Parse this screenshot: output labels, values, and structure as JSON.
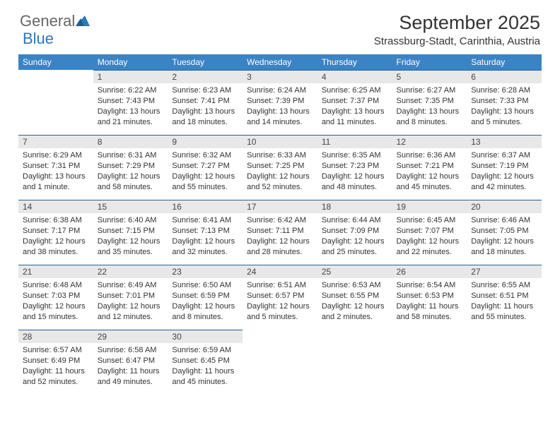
{
  "logo": {
    "text1": "General",
    "text2": "Blue"
  },
  "title": "September 2025",
  "location": "Strassburg-Stadt, Carinthia, Austria",
  "colors": {
    "header_bg": "#3a83c5",
    "header_text": "#ffffff",
    "daynum_bg": "#e8e8e8",
    "daynum_border": "#2e5f8f",
    "text": "#333333",
    "logo_gray": "#666666",
    "logo_blue": "#2e77b8",
    "background": "#ffffff"
  },
  "day_headers": [
    "Sunday",
    "Monday",
    "Tuesday",
    "Wednesday",
    "Thursday",
    "Friday",
    "Saturday"
  ],
  "weeks": [
    [
      {
        "num": "",
        "sunrise": "",
        "sunset": "",
        "daylight": ""
      },
      {
        "num": "1",
        "sunrise": "Sunrise: 6:22 AM",
        "sunset": "Sunset: 7:43 PM",
        "daylight": "Daylight: 13 hours and 21 minutes."
      },
      {
        "num": "2",
        "sunrise": "Sunrise: 6:23 AM",
        "sunset": "Sunset: 7:41 PM",
        "daylight": "Daylight: 13 hours and 18 minutes."
      },
      {
        "num": "3",
        "sunrise": "Sunrise: 6:24 AM",
        "sunset": "Sunset: 7:39 PM",
        "daylight": "Daylight: 13 hours and 14 minutes."
      },
      {
        "num": "4",
        "sunrise": "Sunrise: 6:25 AM",
        "sunset": "Sunset: 7:37 PM",
        "daylight": "Daylight: 13 hours and 11 minutes."
      },
      {
        "num": "5",
        "sunrise": "Sunrise: 6:27 AM",
        "sunset": "Sunset: 7:35 PM",
        "daylight": "Daylight: 13 hours and 8 minutes."
      },
      {
        "num": "6",
        "sunrise": "Sunrise: 6:28 AM",
        "sunset": "Sunset: 7:33 PM",
        "daylight": "Daylight: 13 hours and 5 minutes."
      }
    ],
    [
      {
        "num": "7",
        "sunrise": "Sunrise: 6:29 AM",
        "sunset": "Sunset: 7:31 PM",
        "daylight": "Daylight: 13 hours and 1 minute."
      },
      {
        "num": "8",
        "sunrise": "Sunrise: 6:31 AM",
        "sunset": "Sunset: 7:29 PM",
        "daylight": "Daylight: 12 hours and 58 minutes."
      },
      {
        "num": "9",
        "sunrise": "Sunrise: 6:32 AM",
        "sunset": "Sunset: 7:27 PM",
        "daylight": "Daylight: 12 hours and 55 minutes."
      },
      {
        "num": "10",
        "sunrise": "Sunrise: 6:33 AM",
        "sunset": "Sunset: 7:25 PM",
        "daylight": "Daylight: 12 hours and 52 minutes."
      },
      {
        "num": "11",
        "sunrise": "Sunrise: 6:35 AM",
        "sunset": "Sunset: 7:23 PM",
        "daylight": "Daylight: 12 hours and 48 minutes."
      },
      {
        "num": "12",
        "sunrise": "Sunrise: 6:36 AM",
        "sunset": "Sunset: 7:21 PM",
        "daylight": "Daylight: 12 hours and 45 minutes."
      },
      {
        "num": "13",
        "sunrise": "Sunrise: 6:37 AM",
        "sunset": "Sunset: 7:19 PM",
        "daylight": "Daylight: 12 hours and 42 minutes."
      }
    ],
    [
      {
        "num": "14",
        "sunrise": "Sunrise: 6:38 AM",
        "sunset": "Sunset: 7:17 PM",
        "daylight": "Daylight: 12 hours and 38 minutes."
      },
      {
        "num": "15",
        "sunrise": "Sunrise: 6:40 AM",
        "sunset": "Sunset: 7:15 PM",
        "daylight": "Daylight: 12 hours and 35 minutes."
      },
      {
        "num": "16",
        "sunrise": "Sunrise: 6:41 AM",
        "sunset": "Sunset: 7:13 PM",
        "daylight": "Daylight: 12 hours and 32 minutes."
      },
      {
        "num": "17",
        "sunrise": "Sunrise: 6:42 AM",
        "sunset": "Sunset: 7:11 PM",
        "daylight": "Daylight: 12 hours and 28 minutes."
      },
      {
        "num": "18",
        "sunrise": "Sunrise: 6:44 AM",
        "sunset": "Sunset: 7:09 PM",
        "daylight": "Daylight: 12 hours and 25 minutes."
      },
      {
        "num": "19",
        "sunrise": "Sunrise: 6:45 AM",
        "sunset": "Sunset: 7:07 PM",
        "daylight": "Daylight: 12 hours and 22 minutes."
      },
      {
        "num": "20",
        "sunrise": "Sunrise: 6:46 AM",
        "sunset": "Sunset: 7:05 PM",
        "daylight": "Daylight: 12 hours and 18 minutes."
      }
    ],
    [
      {
        "num": "21",
        "sunrise": "Sunrise: 6:48 AM",
        "sunset": "Sunset: 7:03 PM",
        "daylight": "Daylight: 12 hours and 15 minutes."
      },
      {
        "num": "22",
        "sunrise": "Sunrise: 6:49 AM",
        "sunset": "Sunset: 7:01 PM",
        "daylight": "Daylight: 12 hours and 12 minutes."
      },
      {
        "num": "23",
        "sunrise": "Sunrise: 6:50 AM",
        "sunset": "Sunset: 6:59 PM",
        "daylight": "Daylight: 12 hours and 8 minutes."
      },
      {
        "num": "24",
        "sunrise": "Sunrise: 6:51 AM",
        "sunset": "Sunset: 6:57 PM",
        "daylight": "Daylight: 12 hours and 5 minutes."
      },
      {
        "num": "25",
        "sunrise": "Sunrise: 6:53 AM",
        "sunset": "Sunset: 6:55 PM",
        "daylight": "Daylight: 12 hours and 2 minutes."
      },
      {
        "num": "26",
        "sunrise": "Sunrise: 6:54 AM",
        "sunset": "Sunset: 6:53 PM",
        "daylight": "Daylight: 11 hours and 58 minutes."
      },
      {
        "num": "27",
        "sunrise": "Sunrise: 6:55 AM",
        "sunset": "Sunset: 6:51 PM",
        "daylight": "Daylight: 11 hours and 55 minutes."
      }
    ],
    [
      {
        "num": "28",
        "sunrise": "Sunrise: 6:57 AM",
        "sunset": "Sunset: 6:49 PM",
        "daylight": "Daylight: 11 hours and 52 minutes."
      },
      {
        "num": "29",
        "sunrise": "Sunrise: 6:58 AM",
        "sunset": "Sunset: 6:47 PM",
        "daylight": "Daylight: 11 hours and 49 minutes."
      },
      {
        "num": "30",
        "sunrise": "Sunrise: 6:59 AM",
        "sunset": "Sunset: 6:45 PM",
        "daylight": "Daylight: 11 hours and 45 minutes."
      },
      {
        "num": "",
        "sunrise": "",
        "sunset": "",
        "daylight": ""
      },
      {
        "num": "",
        "sunrise": "",
        "sunset": "",
        "daylight": ""
      },
      {
        "num": "",
        "sunrise": "",
        "sunset": "",
        "daylight": ""
      },
      {
        "num": "",
        "sunrise": "",
        "sunset": "",
        "daylight": ""
      }
    ]
  ]
}
